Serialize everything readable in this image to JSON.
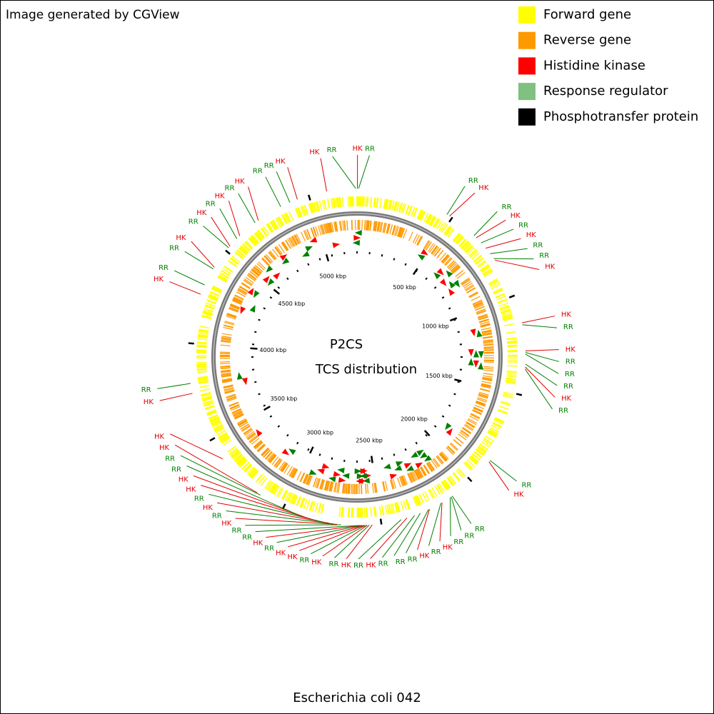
{
  "header": {
    "title": "Image generated by CGView"
  },
  "legend": [
    {
      "label": "Forward gene",
      "color": "#ffff00"
    },
    {
      "label": "Reverse gene",
      "color": "#ff9900"
    },
    {
      "label": "Histidine kinase",
      "color": "#ff0000"
    },
    {
      "label": "Response regulator",
      "color": "#80c080"
    },
    {
      "label": "Phosphotransfer protein",
      "color": "#000000"
    }
  ],
  "map": {
    "title": "P2CS",
    "subtitle": "TCS distribution",
    "footer": "Escherichia coli 042",
    "lim": [
      0,
      5242
    ],
    "ticks": [
      {
        "value": 500,
        "label": "500 kbp"
      },
      {
        "value": 1000,
        "label": "1000 kbp"
      },
      {
        "value": 1500,
        "label": "1500 kbp"
      },
      {
        "value": 2000,
        "label": "2000 kbp"
      },
      {
        "value": 2500,
        "label": "2500 kbp"
      },
      {
        "value": 3000,
        "label": "3000 kbp"
      },
      {
        "value": 3500,
        "label": "3500 kbp"
      },
      {
        "value": 4000,
        "label": "4000 kbp"
      },
      {
        "value": 4500,
        "label": "4500 kbp"
      },
      {
        "value": 5000,
        "label": "5000 kbp"
      }
    ],
    "label_colors": {
      "HK": "#e00000",
      "RR": "#008000"
    },
    "features": [
      {
        "label": "RR",
        "kbp": 5236
      },
      {
        "label": "HK",
        "kbp": 2
      },
      {
        "label": "RR",
        "kbp": 8
      },
      {
        "label": "HK",
        "kbp": 5091
      },
      {
        "label": "RR",
        "kbp": 470
      },
      {
        "label": "HK",
        "kbp": 485
      },
      {
        "label": "RR",
        "kbp": 640
      },
      {
        "label": "HK",
        "kbp": 655
      },
      {
        "label": "RR",
        "kbp": 690
      },
      {
        "label": "HK",
        "kbp": 725
      },
      {
        "label": "RR",
        "kbp": 760
      },
      {
        "label": "RR",
        "kbp": 790
      },
      {
        "label": "HK",
        "kbp": 800
      },
      {
        "label": "HK",
        "kbp": 1140
      },
      {
        "label": "RR",
        "kbp": 1150
      },
      {
        "label": "HK",
        "kbp": 1280
      },
      {
        "label": "RR",
        "kbp": 1288
      },
      {
        "label": "RR",
        "kbp": 1296
      },
      {
        "label": "RR",
        "kbp": 1345
      },
      {
        "label": "HK",
        "kbp": 1360
      },
      {
        "label": "RR",
        "kbp": 1370
      },
      {
        "label": "RR",
        "kbp": 1862
      },
      {
        "label": "HK",
        "kbp": 1870
      },
      {
        "label": "RR",
        "kbp": 2120
      },
      {
        "label": "RR",
        "kbp": 2126
      },
      {
        "label": "RR",
        "kbp": 2132
      },
      {
        "label": "HK",
        "kbp": 2180
      },
      {
        "label": "RR",
        "kbp": 2186
      },
      {
        "label": "HK",
        "kbp": 2250
      },
      {
        "label": "RR",
        "kbp": 2256
      },
      {
        "label": "RR",
        "kbp": 2300
      },
      {
        "label": "RR",
        "kbp": 2330
      },
      {
        "label": "HK",
        "kbp": 2370
      },
      {
        "label": "RR",
        "kbp": 2400
      },
      {
        "label": "HK",
        "kbp": 2545
      },
      {
        "label": "RR",
        "kbp": 2560
      },
      {
        "label": "HK",
        "kbp": 2570
      },
      {
        "label": "RR",
        "kbp": 2577
      },
      {
        "label": "HK",
        "kbp": 2584
      },
      {
        "label": "HK",
        "kbp": 2590
      },
      {
        "label": "RR",
        "kbp": 2597
      },
      {
        "label": "HK",
        "kbp": 2605
      },
      {
        "label": "RR",
        "kbp": 2612
      },
      {
        "label": "RR",
        "kbp": 2700
      },
      {
        "label": "HK",
        "kbp": 2720
      },
      {
        "label": "RR",
        "kbp": 2740
      },
      {
        "label": "HK",
        "kbp": 2760
      },
      {
        "label": "RR",
        "kbp": 2790
      },
      {
        "label": "HK",
        "kbp": 2850
      },
      {
        "label": "HK",
        "kbp": 2880
      },
      {
        "label": "RR",
        "kbp": 2920
      },
      {
        "label": "RR",
        "kbp": 3130
      },
      {
        "label": "HK",
        "kbp": 3150
      },
      {
        "label": "HK",
        "kbp": 3390
      },
      {
        "label": "HK",
        "kbp": 3750
      },
      {
        "label": "RR",
        "kbp": 3800
      },
      {
        "label": "HK",
        "kbp": 4250
      },
      {
        "label": "RR",
        "kbp": 4300
      },
      {
        "label": "RR",
        "kbp": 4390
      },
      {
        "label": "HK",
        "kbp": 4400
      },
      {
        "label": "RR",
        "kbp": 4520
      },
      {
        "label": "HK",
        "kbp": 4530
      },
      {
        "label": "RR",
        "kbp": 4580
      },
      {
        "label": "HK",
        "kbp": 4600
      },
      {
        "label": "RR",
        "kbp": 4700
      },
      {
        "label": "HK",
        "kbp": 4720
      },
      {
        "label": "RR",
        "kbp": 4850
      },
      {
        "label": "RR",
        "kbp": 4900
      },
      {
        "label": "HK",
        "kbp": 4940
      }
    ]
  }
}
